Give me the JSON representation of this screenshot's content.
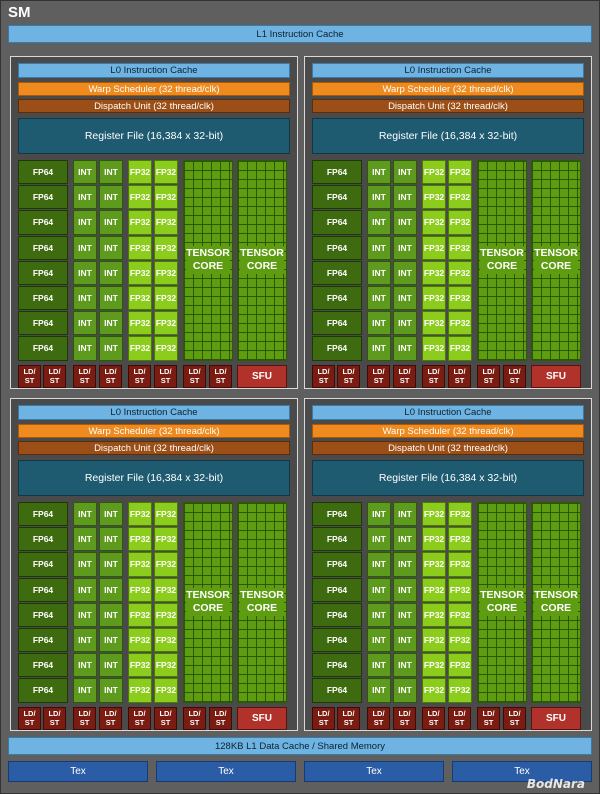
{
  "sm": {
    "title": "SM",
    "l1_instruction_cache": "L1 Instruction Cache",
    "l1_data_cache": "128KB L1 Data Cache / Shared Memory",
    "tex_labels": [
      "Tex",
      "Tex",
      "Tex",
      "Tex"
    ],
    "watermark": "BodNara"
  },
  "partition": {
    "l0_cache": "L0 Instruction Cache",
    "warp_scheduler": "Warp Scheduler (32 thread/clk)",
    "dispatch_unit": "Dispatch Unit (32 thread/clk)",
    "register_file": "Register File (16,384 x 32-bit)",
    "fp64_label": "FP64",
    "int_label": "INT",
    "fp32_label": "FP32",
    "tensor_label_line1": "TENSOR",
    "tensor_label_line2": "CORE",
    "ldst_line1": "LD/",
    "ldst_line2": "ST",
    "sfu_label": "SFU"
  },
  "colors": {
    "sm_background": "#5f5f5f",
    "cache_blue": "#6fb3e3",
    "scheduler_orange": "#ef8a1f",
    "dispatch_brown": "#9b4e15",
    "register_teal": "#1e5a70",
    "fp64_green": "#3e6b10",
    "int_green": "#5d9a1d",
    "fp32_green": "#8ccc1c",
    "ldst_red": "#7a1c12",
    "sfu_red": "#b0322a",
    "tex_blue": "#2b5da6"
  },
  "layout": {
    "partition_count": 4,
    "rows_per_partition": 8,
    "ldst_units_per_partition": 8
  }
}
